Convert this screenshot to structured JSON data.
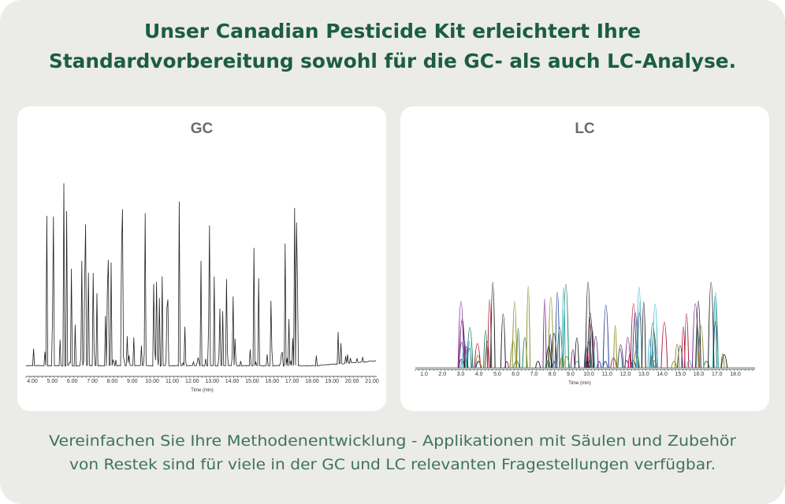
{
  "header": {
    "title_lines": [
      "Unser Canadian Pesticide Kit erleichtert Ihre",
      "Standardvorbereitung sowohl für die GC- als auch LC-Analyse."
    ]
  },
  "panels": [
    {
      "title": "GC",
      "axis_label": "Time (min)",
      "ticks": [
        "4.00",
        "5.00",
        "6.00",
        "7.00",
        "8.00",
        "9.00",
        "10.00",
        "11.00",
        "12.00",
        "13.00",
        "14.00",
        "15.00",
        "16.00",
        "17.00",
        "18.00",
        "19.00",
        "20.00",
        "21.00"
      ]
    },
    {
      "title": "LC",
      "axis_label": "Time (min)",
      "ticks": [
        "1.0",
        "2.0",
        "3.0",
        "4.0",
        "5.0",
        "6.0",
        "7.0",
        "8.0",
        "9.0",
        "10.0",
        "11.0",
        "12.0",
        "13.0",
        "14.0",
        "15.0",
        "16.0",
        "17.0",
        "18.0"
      ]
    }
  ],
  "footer": {
    "lines": [
      "Vereinfachen Sie Ihre Methodenentwicklung - Applikationen mit Säulen und Zubehör",
      "von Restek sind für viele in der GC und LC relevanten Fragestellungen verfügbar."
    ]
  }
}
